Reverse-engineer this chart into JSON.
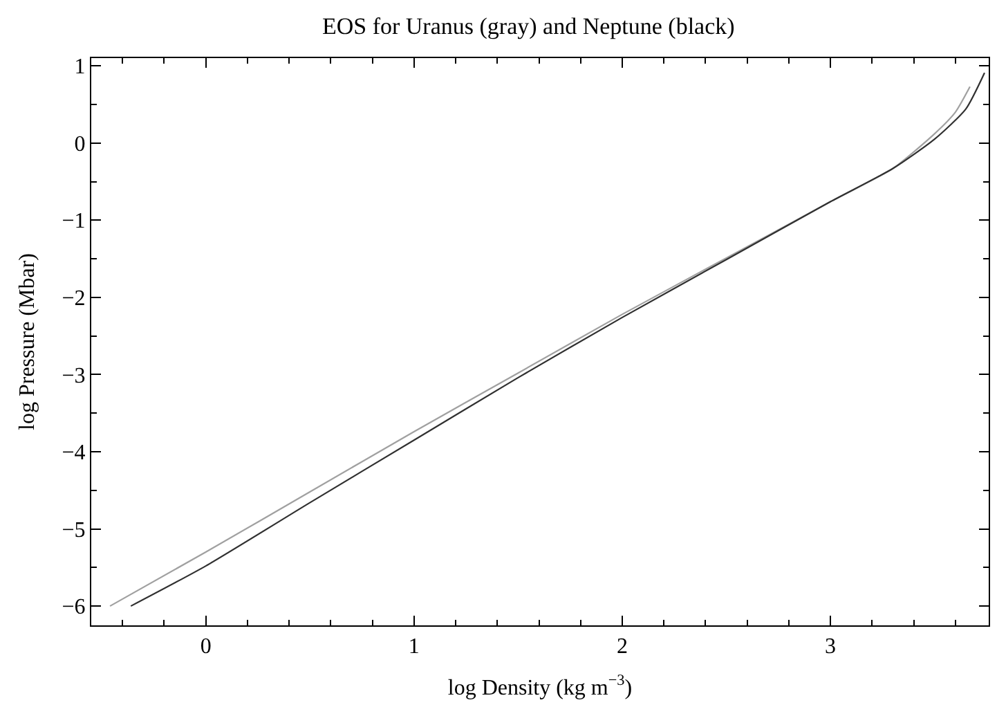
{
  "chart_data": {
    "type": "line",
    "title": "EOS for Uranus (gray) and Neptune (black)",
    "xlabel": "log Density (kg m$^{−3}$)",
    "ylabel": "log Pressure (Mbar)",
    "xlim": [
      -0.55,
      3.76
    ],
    "ylim": [
      -6.25,
      1.1
    ],
    "xticks": [
      0,
      1,
      2,
      3
    ],
    "yticks": [
      -6,
      -5,
      -4,
      -3,
      -2,
      -1,
      0,
      1
    ],
    "marker": "none",
    "line_style": "solid",
    "series": [
      {
        "color": "#a0a0a0",
        "x": [
          -0.46,
          0,
          0.5,
          1,
          1.5,
          2,
          2.5,
          3,
          3.3,
          3.5,
          3.6,
          3.67
        ],
        "values": [
          -6.0,
          -5.3,
          -4.52,
          -3.74,
          -2.98,
          -2.22,
          -1.49,
          -0.76,
          -0.33,
          0.12,
          0.4,
          0.73
        ]
      },
      {
        "color": "#303030",
        "x": [
          -0.36,
          0,
          0.5,
          1,
          1.5,
          2,
          2.5,
          3,
          3.3,
          3.5,
          3.65,
          3.74
        ],
        "values": [
          -6.0,
          -5.48,
          -4.66,
          -3.85,
          -3.04,
          -2.26,
          -1.51,
          -0.76,
          -0.33,
          0.05,
          0.44,
          0.91
        ]
      }
    ]
  }
}
